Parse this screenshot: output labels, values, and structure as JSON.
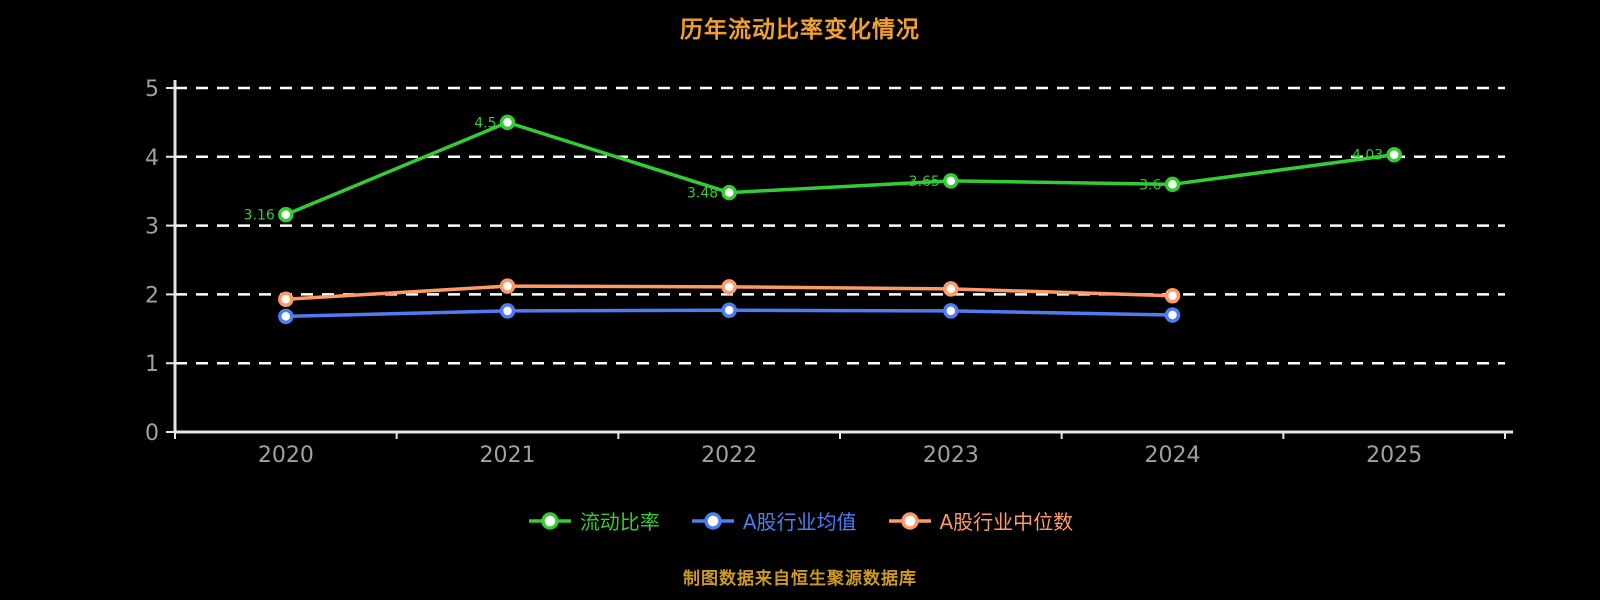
{
  "title": "历年流动比率变化情况",
  "source_note": "制图数据来自恒生聚源数据库",
  "colors": {
    "background": "#000000",
    "title": "#ee9f30",
    "source_note": "#cc9922",
    "grid": "#ffffff",
    "axis": "#e6e6e6",
    "tick_label": "#a0a0a0"
  },
  "chart_data": {
    "type": "line",
    "title": "历年流动比率变化情况",
    "categories": [
      "2020",
      "2021",
      "2022",
      "2023",
      "2024",
      "2025"
    ],
    "series": [
      {
        "name": "流动比率",
        "color": "#33cc33",
        "values": [
          3.16,
          4.5,
          3.48,
          3.65,
          3.6,
          4.03
        ],
        "labels": [
          "3.16",
          "4.5",
          "3.48",
          "3.65",
          "3.6",
          "4.03"
        ],
        "marker": "circle"
      },
      {
        "name": "A股行业均值",
        "color": "#4e7df2",
        "values": [
          1.68,
          1.76,
          1.77,
          1.76,
          1.7,
          null
        ],
        "labels": null,
        "marker": "circle"
      },
      {
        "name": "A股行业中位数",
        "color": "#ff9966",
        "values": [
          1.93,
          2.12,
          2.11,
          2.08,
          1.98,
          null
        ],
        "labels": null,
        "marker": "circle"
      }
    ],
    "ylim": [
      0,
      5
    ],
    "yticks": [
      0,
      1,
      2,
      3,
      4,
      5
    ],
    "grid": "horizontal-dashed",
    "legend_position": "bottom"
  }
}
